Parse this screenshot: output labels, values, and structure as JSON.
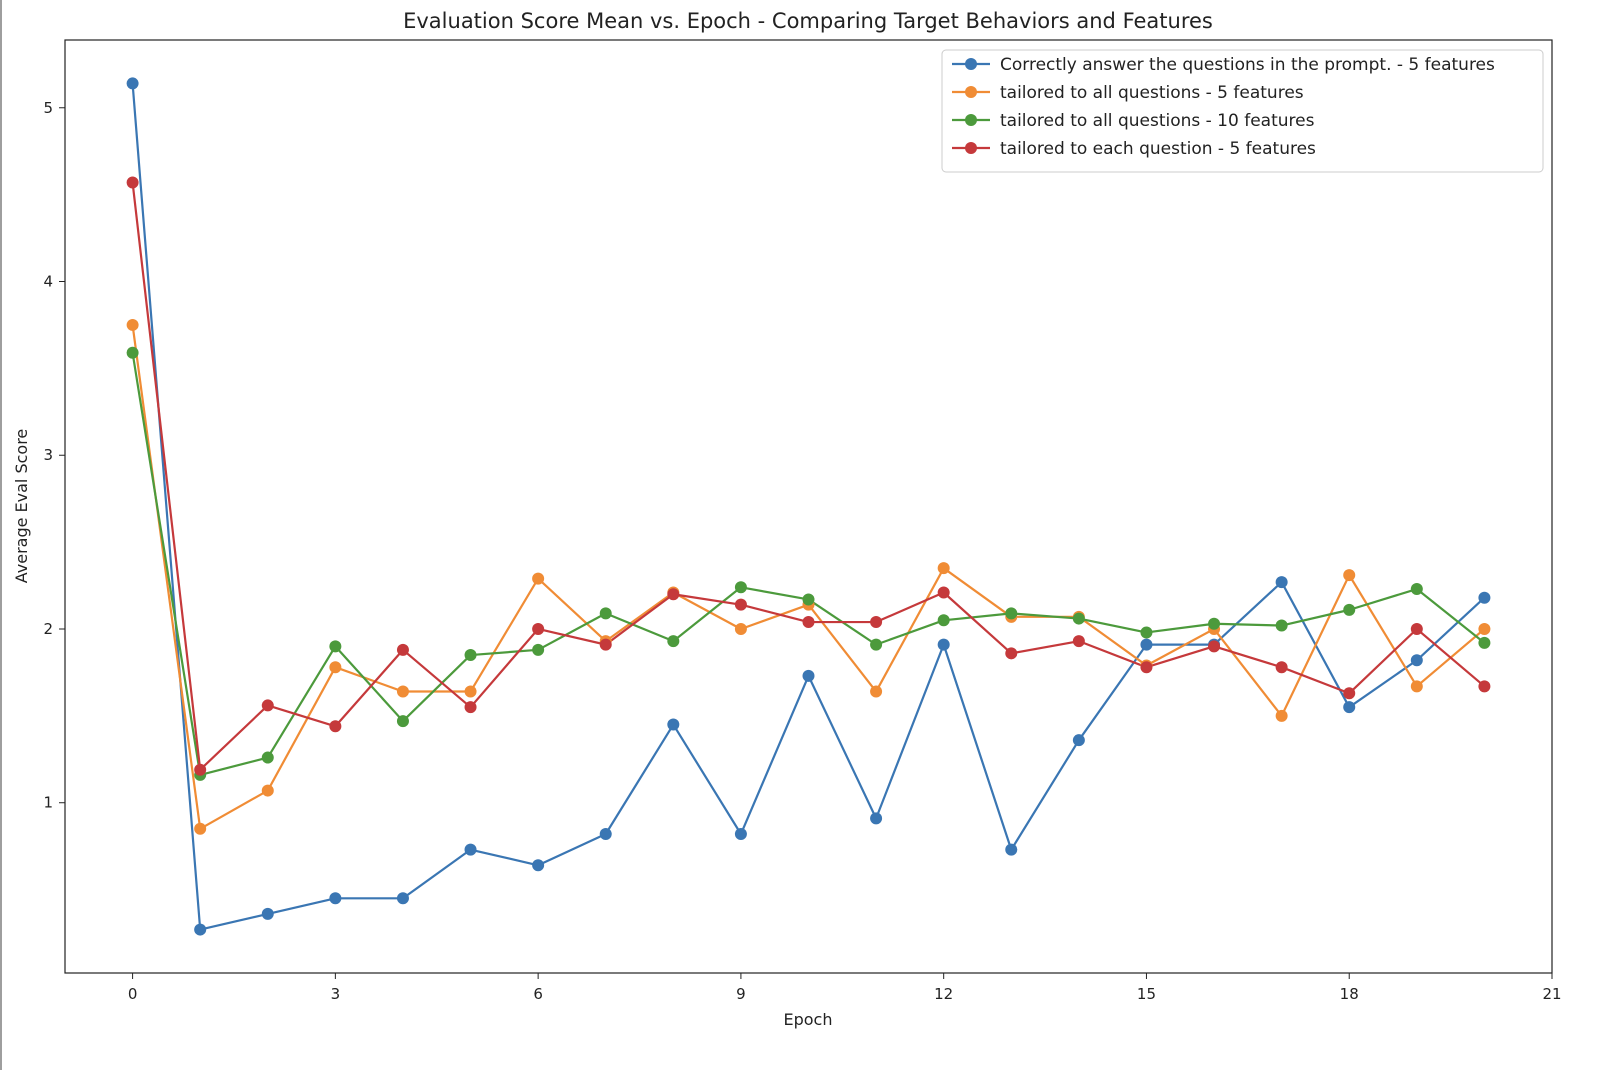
{
  "chart_data": {
    "type": "line",
    "title": "Evaluation Score Mean vs. Epoch - Comparing Target Behaviors and Features",
    "xlabel": "Epoch",
    "ylabel": "Average Eval Score",
    "xlim": [
      -1,
      21
    ],
    "ylim": [
      0.02,
      5.39
    ],
    "xticks": [
      0,
      3,
      6,
      9,
      12,
      15,
      18,
      21
    ],
    "yticks": [
      1,
      2,
      3,
      4,
      5
    ],
    "grid": false,
    "legend_position": "top-right",
    "x": [
      0,
      1,
      2,
      3,
      4,
      5,
      6,
      7,
      8,
      9,
      10,
      11,
      12,
      13,
      14,
      15,
      16,
      17,
      18,
      19,
      20
    ],
    "series": [
      {
        "name": "Correctly answer the questions in the prompt. - 5 features",
        "color": "#3a76b3",
        "values": [
          5.14,
          0.27,
          0.36,
          0.45,
          0.45,
          0.73,
          0.64,
          0.82,
          1.45,
          0.82,
          1.73,
          0.91,
          1.91,
          0.73,
          1.36,
          1.91,
          1.91,
          2.27,
          1.55,
          1.82,
          2.18
        ]
      },
      {
        "name": "tailored to all questions - 5 features",
        "color": "#f08c35",
        "values": [
          3.75,
          0.85,
          1.07,
          1.78,
          1.64,
          1.64,
          2.29,
          1.93,
          2.21,
          2.0,
          2.14,
          1.64,
          2.35,
          2.07,
          2.07,
          1.79,
          2.0,
          1.5,
          2.31,
          1.67,
          2.0
        ]
      },
      {
        "name": "tailored to all questions - 10 features",
        "color": "#4c9a3c",
        "values": [
          3.59,
          1.16,
          1.26,
          1.9,
          1.47,
          1.85,
          1.88,
          2.09,
          1.93,
          2.24,
          2.17,
          1.91,
          2.05,
          2.09,
          2.06,
          1.98,
          2.03,
          2.02,
          2.11,
          2.23,
          1.92
        ]
      },
      {
        "name": "tailored to each question - 5 features",
        "color": "#c5393b",
        "values": [
          4.57,
          1.19,
          1.56,
          1.44,
          1.88,
          1.55,
          2.0,
          1.91,
          2.2,
          2.14,
          2.04,
          2.04,
          2.21,
          1.86,
          1.93,
          1.78,
          1.9,
          1.78,
          1.63,
          2.0,
          1.67
        ]
      }
    ]
  }
}
